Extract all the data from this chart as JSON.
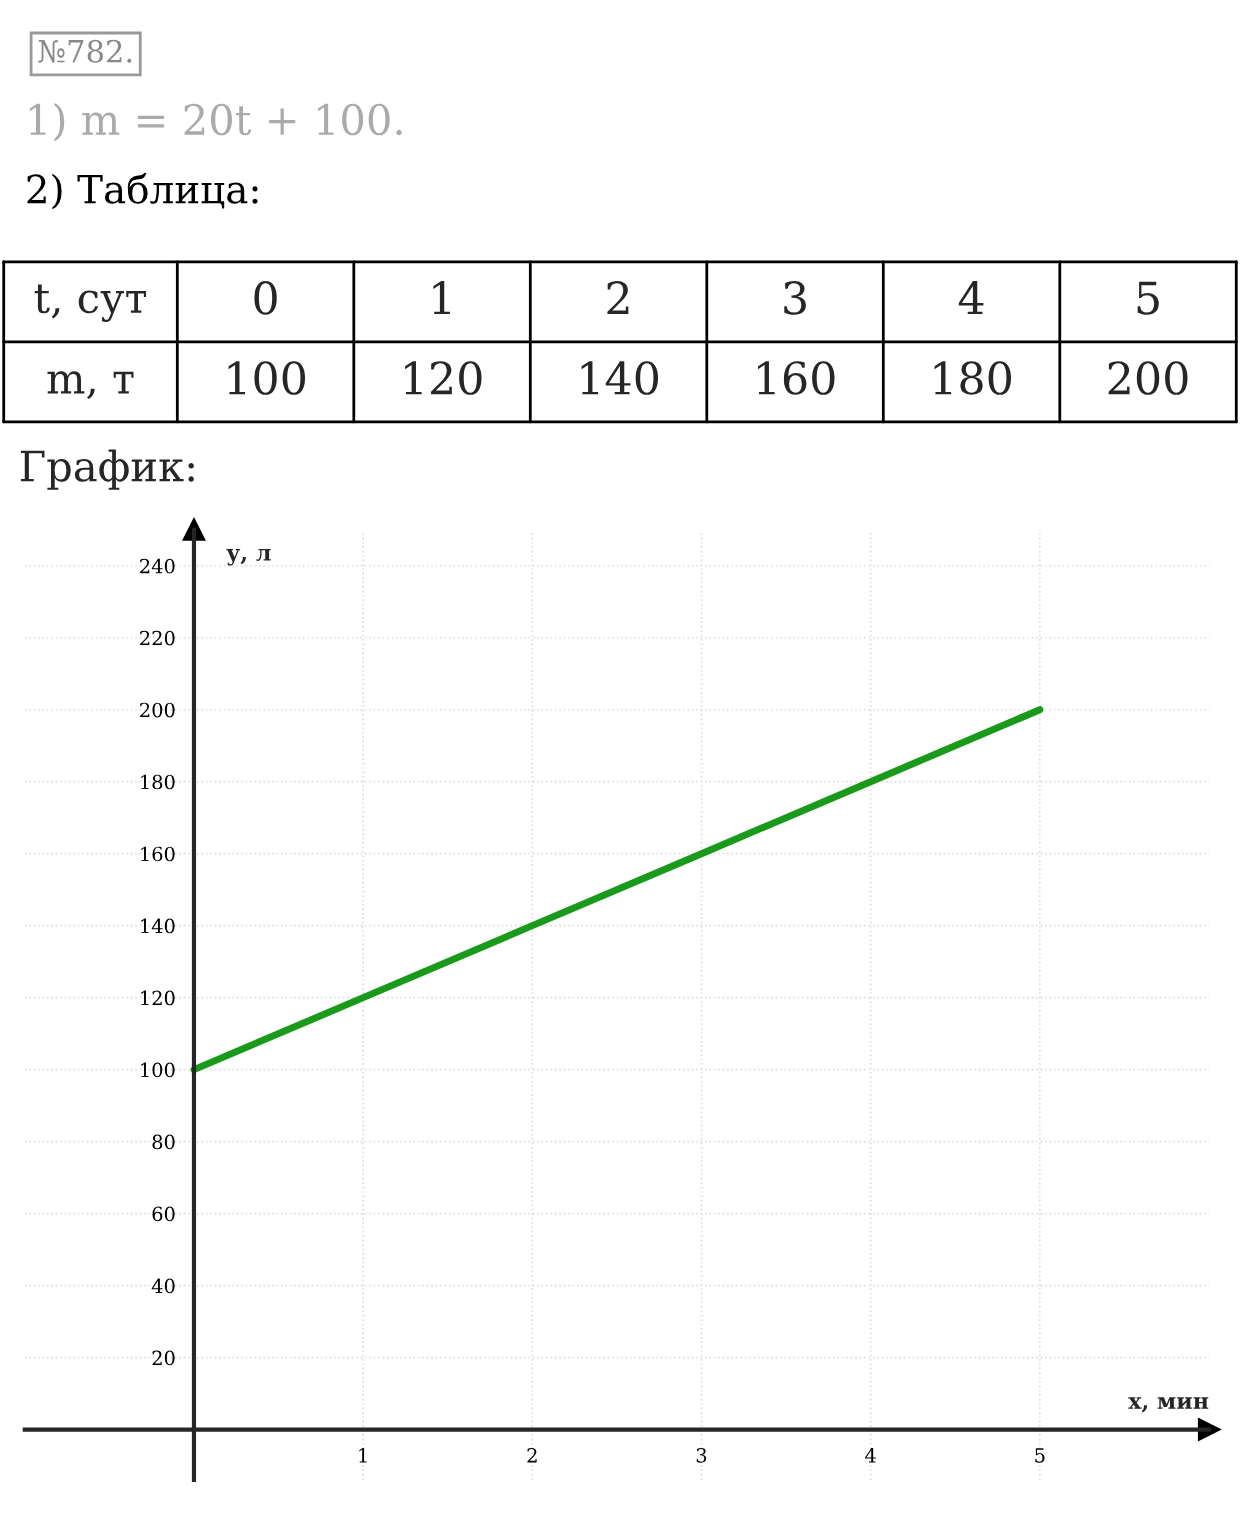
{
  "chart_data": {
    "type": "line",
    "annotations": [
      "№782.",
      "1) m = 20t + 100.",
      "2) Таблица:",
      "t, сут",
      "m, т",
      "График:",
      "0",
      "1",
      "2",
      "3",
      "4",
      "5",
      "100",
      "120",
      "140",
      "160",
      "180",
      "200"
    ],
    "xlabel": "х, мин",
    "ylabel": "у, л",
    "x": [
      0,
      1,
      2,
      3,
      4,
      5
    ],
    "series": [
      {
        "color": "#1a9a1a",
        "values": [
          100,
          120,
          140,
          160,
          180,
          200
        ]
      }
    ],
    "xlim": [
      -1,
      6
    ],
    "ylim": [
      -14,
      250
    ],
    "xticks": [
      1,
      2,
      3,
      4,
      5
    ],
    "yticks": [
      20,
      40,
      60,
      80,
      100,
      120,
      140,
      160,
      180,
      200,
      220,
      240
    ],
    "grid": true,
    "marker": "none",
    "line_style": "solid"
  }
}
